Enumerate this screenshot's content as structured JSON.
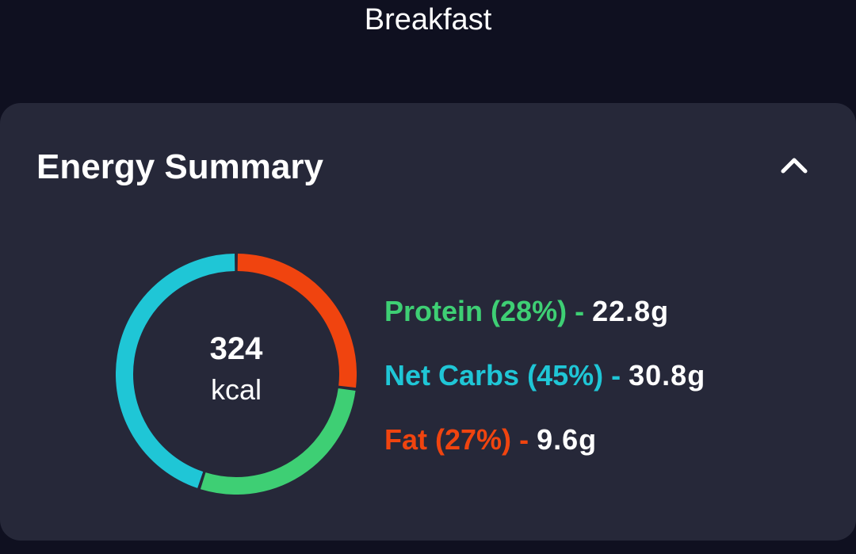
{
  "screen": {
    "title": "Breakfast"
  },
  "energy_summary": {
    "title": "Energy Summary",
    "collapse_icon": "chevron-up-icon",
    "calories": {
      "value": "324",
      "unit": "kcal"
    },
    "macros": [
      {
        "name": "Protein",
        "percent_label": "(28%)",
        "separator": "-",
        "amount": "22.8g",
        "percent": 28,
        "color": "#3ecf74"
      },
      {
        "name": "Net Carbs",
        "percent_label": "(45%)",
        "separator": "-",
        "amount": "30.8g",
        "percent": 45,
        "color": "#1fc6d6"
      },
      {
        "name": "Fat",
        "percent_label": "(27%)",
        "separator": "-",
        "amount": "9.6g",
        "percent": 27,
        "color": "#f0440f"
      }
    ]
  },
  "colors": {
    "background": "#0f1020",
    "card": "#262839",
    "protein": "#3ecf74",
    "net_carbs": "#1fc6d6",
    "fat": "#f0440f"
  }
}
